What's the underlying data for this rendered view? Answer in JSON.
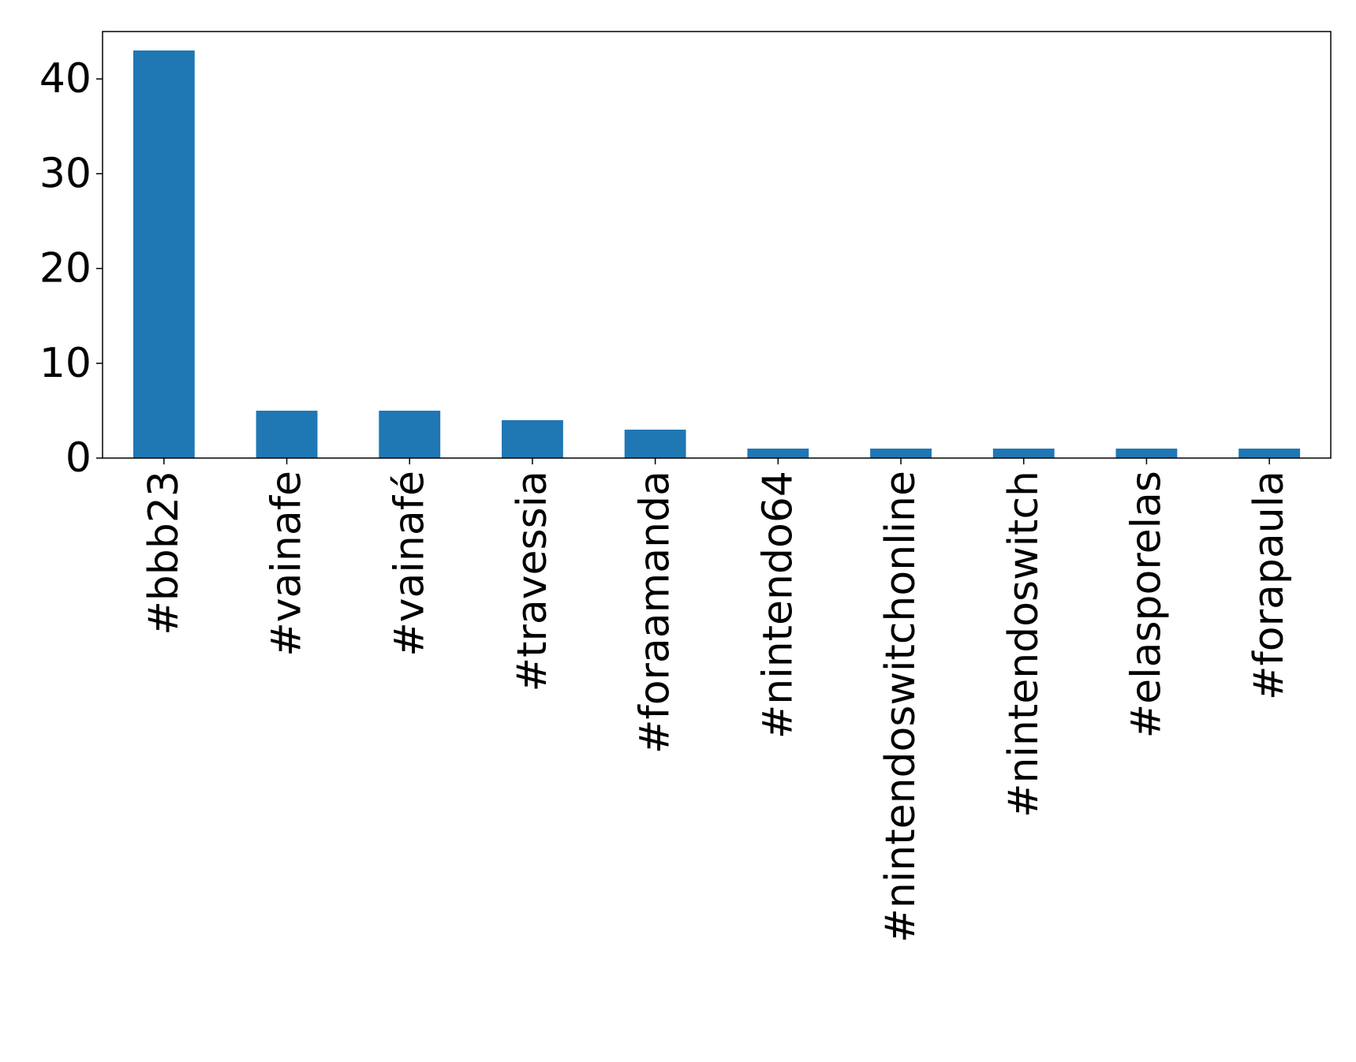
{
  "chart_data": {
    "type": "bar",
    "title": "",
    "xlabel": "",
    "ylabel": "",
    "categories": [
      "#bbb23",
      "#vainafe",
      "#vainafé",
      "#travessia",
      "#foraamanda",
      "#nintendo64",
      "#nintendoswitchonline",
      "#nintendoswitch",
      "#elasporelas",
      "#forapaula"
    ],
    "values": [
      43,
      5,
      5,
      4,
      3,
      1,
      1,
      1,
      1,
      1
    ],
    "ylim": [
      0,
      45
    ],
    "yticks": [
      0,
      10,
      20,
      30,
      40
    ],
    "ytick_labels": [
      "0",
      "10",
      "20",
      "30",
      "40"
    ],
    "bar_color": "#1f77b4",
    "grid": false,
    "legend": "none"
  }
}
